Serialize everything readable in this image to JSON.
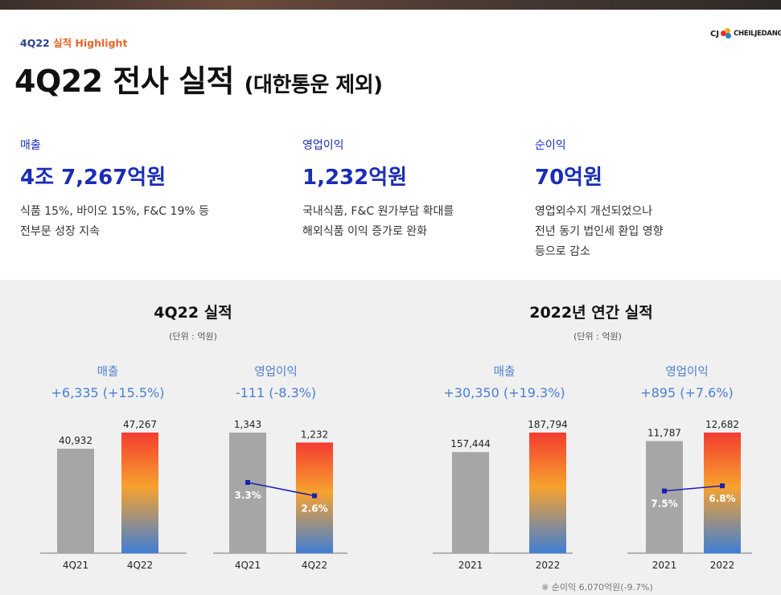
{
  "header": {
    "kicker_quarter": "4Q22",
    "kicker_text": "실적 Highlight",
    "title_main": "4Q22 전사 실적",
    "title_sub": "(대한통운 제외)"
  },
  "logo": {
    "cj": "CJ",
    "brand": "CHEILJEDANG"
  },
  "kpis": [
    {
      "label": "매출",
      "value": "4조 7,267억원",
      "desc": [
        "식품 15%, 바이오 15%, F&C 19% 등",
        "전부문 성장 지속"
      ]
    },
    {
      "label": "영업이익",
      "value": "1,232억원",
      "desc": [
        "국내식품, F&C 원가부담 확대를",
        "해외식품 이익 증가로 완화"
      ]
    },
    {
      "label": "순이익",
      "value": "70억원",
      "desc": [
        "영업외수지 개선되었으나",
        "전년 동기 법인세 환입 영향",
        "등으로 감소"
      ]
    }
  ],
  "sections": {
    "quarter": {
      "title": "4Q22 실적",
      "unit": "(단위 : 억원)"
    },
    "annual": {
      "title": "2022년 연간 실적",
      "unit": "(단위 : 억원)"
    }
  },
  "charts": {
    "q_sales": {
      "label": "매출",
      "delta": "+6,335 (+15.5%)"
    },
    "q_op": {
      "label": "영업이익",
      "delta": "-111 (-8.3%)"
    },
    "y_sales": {
      "label": "매출",
      "delta": "+30,350 (+19.3%)"
    },
    "y_op": {
      "label": "영업이익",
      "delta": "+895 (+7.6%)"
    }
  },
  "note": "※ 순이익 6,070억원(-9.7%)",
  "colors": {
    "accent_blue": "#1a2db5",
    "delta_blue": "#4a7fd0",
    "bar_gray": "#a6a6a6",
    "grad_top": "#f43b30",
    "grad_mid": "#f7a22e",
    "grad_bottom": "#3f7fd6"
  },
  "chart_data": [
    {
      "type": "bar",
      "categories": [
        "4Q21",
        "4Q22"
      ],
      "values": [
        40932,
        47267
      ],
      "labels": [
        "40,932",
        "47,267"
      ]
    },
    {
      "type": "bar",
      "categories": [
        "4Q21",
        "4Q22"
      ],
      "values": [
        1343,
        1232
      ],
      "labels": [
        "1,343",
        "1,232"
      ],
      "line": {
        "values": [
          3.3,
          2.6
        ],
        "labels": [
          "3.3%",
          "2.6%"
        ]
      }
    },
    {
      "type": "bar",
      "categories": [
        "2021",
        "2022"
      ],
      "values": [
        157444,
        187794
      ],
      "labels": [
        "157,444",
        "187,794"
      ]
    },
    {
      "type": "bar",
      "categories": [
        "2021",
        "2022"
      ],
      "values": [
        11787,
        12682
      ],
      "labels": [
        "11,787",
        "12,682"
      ],
      "line": {
        "values": [
          7.5,
          6.8
        ],
        "labels": [
          "7.5%",
          "6.8%"
        ]
      }
    }
  ]
}
